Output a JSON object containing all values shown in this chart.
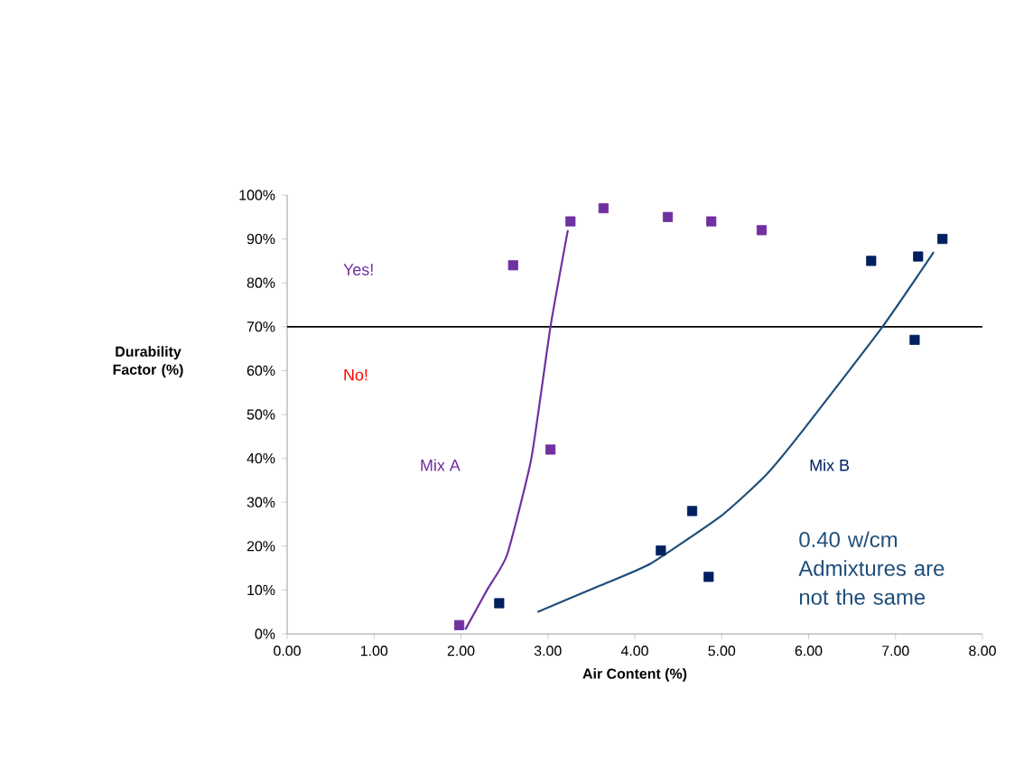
{
  "chart_data": {
    "type": "scatter",
    "xlabel": "Air Content (%)",
    "ylabel": "Durability Factor (%)",
    "xlim": [
      0,
      8
    ],
    "ylim": [
      0,
      100
    ],
    "xticks": [
      {
        "value": 0,
        "label": "0.00"
      },
      {
        "value": 1,
        "label": "1.00"
      },
      {
        "value": 2,
        "label": "2.00"
      },
      {
        "value": 3,
        "label": "3.00"
      },
      {
        "value": 4,
        "label": "4.00"
      },
      {
        "value": 5,
        "label": "5.00"
      },
      {
        "value": 6,
        "label": "6.00"
      },
      {
        "value": 7,
        "label": "7.00"
      },
      {
        "value": 8,
        "label": "8.00"
      }
    ],
    "yticks": [
      {
        "value": 0,
        "label": "0%"
      },
      {
        "value": 10,
        "label": "10%"
      },
      {
        "value": 20,
        "label": "20%"
      },
      {
        "value": 30,
        "label": "30%"
      },
      {
        "value": 40,
        "label": "40%"
      },
      {
        "value": 50,
        "label": "50%"
      },
      {
        "value": 60,
        "label": "60%"
      },
      {
        "value": 70,
        "label": "70%"
      },
      {
        "value": 80,
        "label": "80%"
      },
      {
        "value": 90,
        "label": "90%"
      },
      {
        "value": 100,
        "label": "100%"
      }
    ],
    "marker": "square",
    "line_style": "solid",
    "grid": false,
    "ref_lines": [
      {
        "axis": "y",
        "value": 70,
        "color": "#000000"
      }
    ],
    "annotations": [
      "Yes!",
      "No!",
      "0.40 w/cm Admixtures are not the same"
    ],
    "series": [
      {
        "name": "Mix A",
        "color": "#7030a0",
        "x": [
          1.98,
          2.6,
          3.03,
          3.26,
          3.64,
          4.38,
          4.88,
          5.46
        ],
        "values": [
          2,
          84,
          42,
          94,
          97,
          95,
          94,
          92
        ]
      },
      {
        "type": "line",
        "color": "#7030a0",
        "marker": "none",
        "x": [
          2.05,
          2.3,
          2.53,
          2.81,
          3.03,
          3.23
        ],
        "values": [
          1,
          10,
          18,
          40,
          70,
          92
        ]
      },
      {
        "name": "Mix B",
        "color": "#002060",
        "x": [
          2.44,
          4.3,
          4.66,
          4.85,
          6.72,
          7.22,
          7.26,
          7.54
        ],
        "values": [
          7,
          19,
          28,
          13,
          85,
          67,
          86,
          90
        ]
      },
      {
        "type": "line",
        "color": "#1f4e79",
        "marker": "none",
        "x": [
          2.88,
          3.6,
          4.18,
          5.0,
          5.5,
          5.92,
          6.85,
          7.44
        ],
        "values": [
          5,
          11,
          16,
          27,
          36,
          46,
          70,
          87
        ]
      }
    ]
  }
}
